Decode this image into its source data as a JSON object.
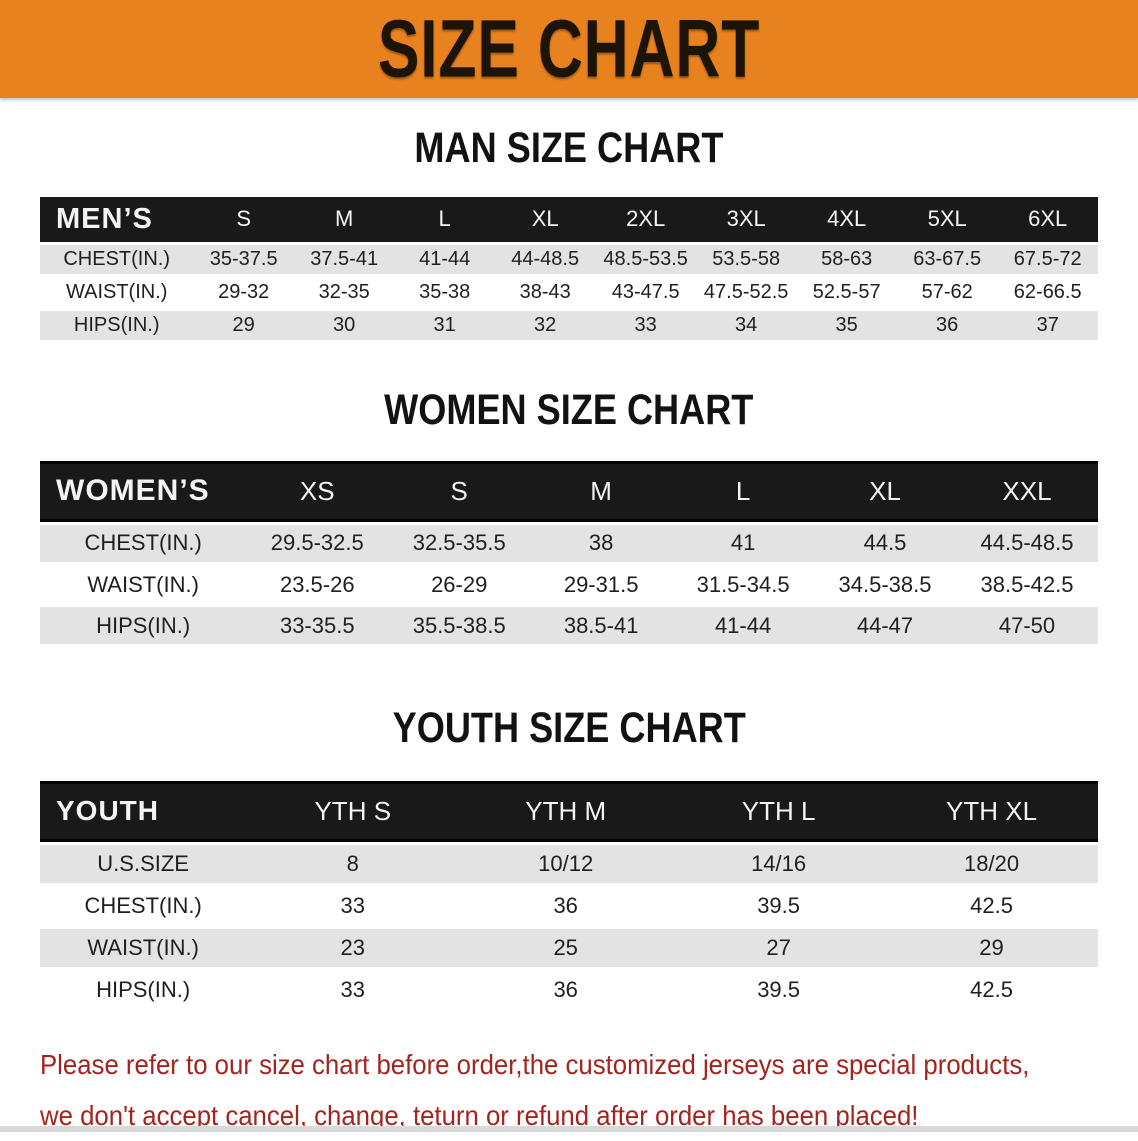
{
  "banner": {
    "title": "SIZE CHART",
    "bg_color": "#E8821E",
    "text_color": "#1d1408"
  },
  "sections": [
    {
      "id": "men",
      "title": "MAN SIZE CHART",
      "table": {
        "header_label": "MEN’S",
        "columns": [
          "S",
          "M",
          "L",
          "XL",
          "2XL",
          "3XL",
          "4XL",
          "5XL",
          "6XL"
        ],
        "rows": [
          {
            "label": "CHEST(IN.)",
            "values": [
              "35-37.5",
              "37.5-41",
              "41-44",
              "44-48.5",
              "48.5-53.5",
              "53.5-58",
              "58-63",
              "63-67.5",
              "67.5-72"
            ]
          },
          {
            "label": "WAIST(IN.)",
            "values": [
              "29-32",
              "32-35",
              "35-38",
              "38-43",
              "43-47.5",
              "47.5-52.5",
              "52.5-57",
              "57-62",
              "62-66.5"
            ]
          },
          {
            "label": "HIPS(IN.)",
            "values": [
              "29",
              "30",
              "31",
              "32",
              "33",
              "34",
              "35",
              "36",
              "37"
            ]
          }
        ]
      }
    },
    {
      "id": "women",
      "title": "WOMEN SIZE CHART",
      "table": {
        "header_label": "WOMEN’S",
        "columns": [
          "XS",
          "S",
          "M",
          "L",
          "XL",
          "XXL"
        ],
        "rows": [
          {
            "label": "CHEST(IN.)",
            "values": [
              "29.5-32.5",
              "32.5-35.5",
              "38",
              "41",
              "44.5",
              "44.5-48.5"
            ]
          },
          {
            "label": "WAIST(IN.)",
            "values": [
              "23.5-26",
              "26-29",
              "29-31.5",
              "31.5-34.5",
              "34.5-38.5",
              "38.5-42.5"
            ]
          },
          {
            "label": "HIPS(IN.)",
            "values": [
              "33-35.5",
              "35.5-38.5",
              "38.5-41",
              "41-44",
              "44-47",
              "47-50"
            ]
          }
        ]
      }
    },
    {
      "id": "youth",
      "title": "YOUTH SIZE CHART",
      "table": {
        "header_label": "YOUTH",
        "columns": [
          "YTH S",
          "YTH M",
          "YTH L",
          "YTH XL"
        ],
        "rows": [
          {
            "label": "U.S.SIZE",
            "values": [
              "8",
              "10/12",
              "14/16",
              "18/20"
            ]
          },
          {
            "label": "CHEST(IN.)",
            "values": [
              "33",
              "36",
              "39.5",
              "42.5"
            ]
          },
          {
            "label": "WAIST(IN.)",
            "values": [
              "23",
              "25",
              "27",
              "29"
            ]
          },
          {
            "label": "HIPS(IN.)",
            "values": [
              "33",
              "36",
              "39.5",
              "42.5"
            ]
          }
        ]
      }
    }
  ],
  "disclaimer": {
    "line1": "Please refer to our size chart before order,the customized jerseys are special products,",
    "line2": "we don't accept cancel, change, teturn or refund after order has been placed!",
    "color": "#a3241f"
  },
  "colors": {
    "banner_bg": "#E8821E",
    "table_header_bg": "#191919",
    "row_shade": "#e3e3e3"
  }
}
